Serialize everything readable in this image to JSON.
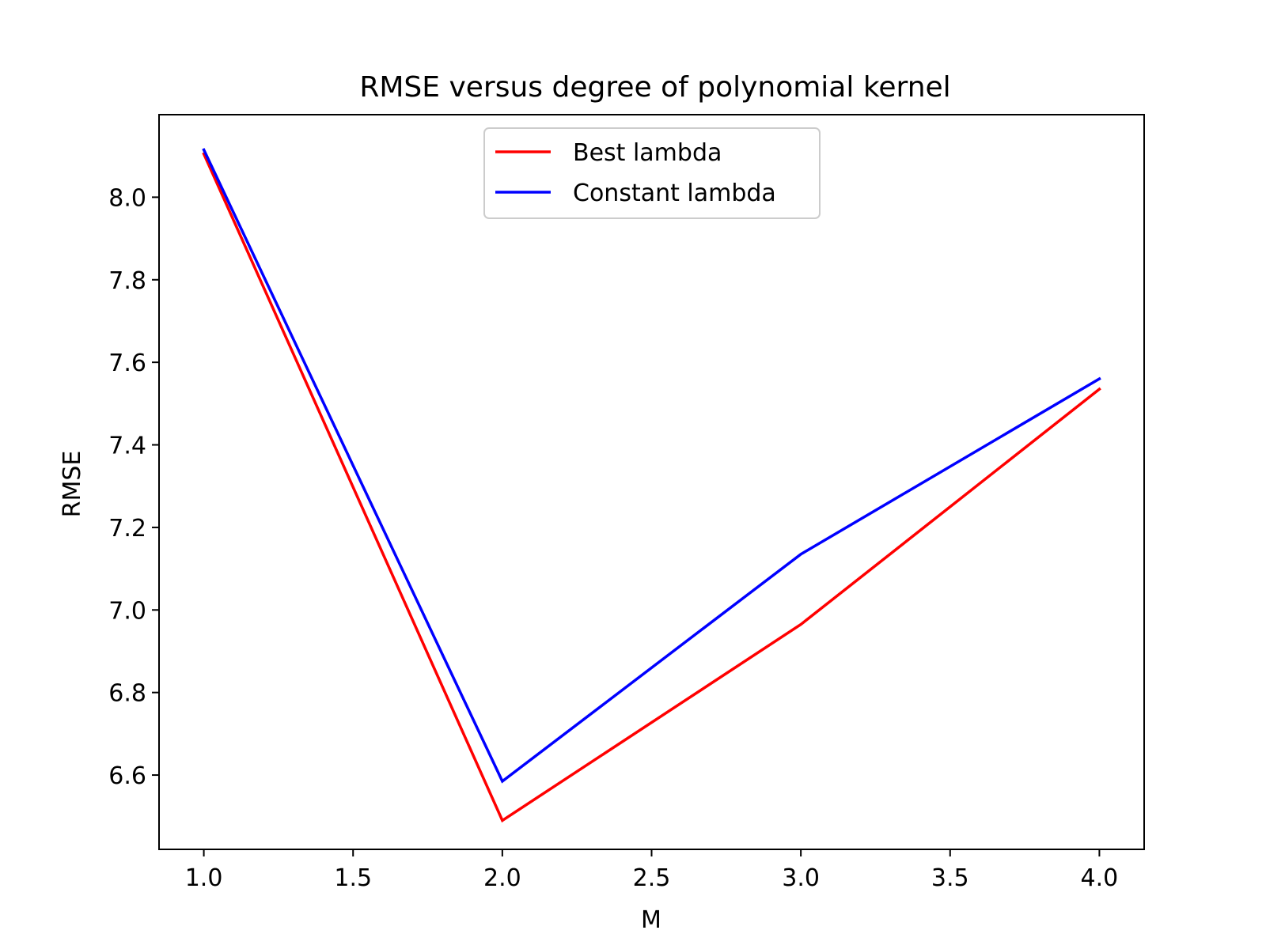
{
  "chart_data": {
    "type": "line",
    "title": "RMSE versus degree of polynomial kernel",
    "xlabel": "M",
    "ylabel": "RMSE",
    "x": [
      1,
      2,
      3,
      4
    ],
    "xlim": [
      0.85,
      4.15
    ],
    "ylim": [
      6.42,
      8.2
    ],
    "xticks": [
      1.0,
      1.5,
      2.0,
      2.5,
      3.0,
      3.5,
      4.0
    ],
    "xtick_labels": [
      "1.0",
      "1.5",
      "2.0",
      "2.5",
      "3.0",
      "3.5",
      "4.0"
    ],
    "yticks": [
      6.6,
      6.8,
      7.0,
      7.2,
      7.4,
      7.6,
      7.8,
      8.0
    ],
    "ytick_labels": [
      "6.6",
      "6.8",
      "7.0",
      "7.2",
      "7.4",
      "7.6",
      "7.8",
      "8.0"
    ],
    "grid": false,
    "legend_position": "top-center",
    "series": [
      {
        "name": "Best lambda",
        "color": "#ff0000",
        "values": [
          8.105,
          6.49,
          6.965,
          7.535
        ]
      },
      {
        "name": "Constant lambda",
        "color": "#0000ff",
        "values": [
          8.115,
          6.585,
          7.135,
          7.56
        ]
      }
    ]
  }
}
